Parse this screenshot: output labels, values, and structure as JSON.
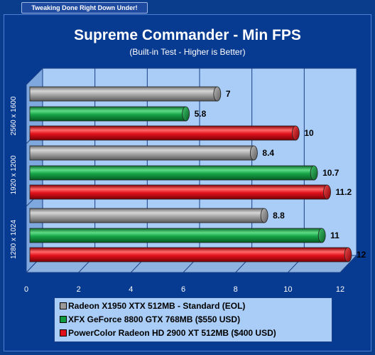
{
  "banner": "Tweaking Done Right Down Under!",
  "chart_data": {
    "type": "bar",
    "orientation": "horizontal",
    "title": "Supreme Commander - Min FPS",
    "subtitle": "(Built-in Test  - Higher is Better)",
    "categories": [
      "2560 x 1600",
      "1920 x 1200",
      "1280 x 1024"
    ],
    "series": [
      {
        "name": "Radeon X1950 XTX 512MB - Standard (EOL)",
        "color": "#9a9a9a",
        "values": [
          7,
          8.4,
          8.8
        ],
        "labels": [
          "7",
          "8.4",
          "8.8"
        ]
      },
      {
        "name": "XFX GeForce 8800 GTX 768MB ($550 USD)",
        "color": "#119a3e",
        "values": [
          5.8,
          10.7,
          11
        ],
        "labels": [
          "5.8",
          "10.7",
          "11"
        ]
      },
      {
        "name": "PowerColor Radeon HD 2900 XT 512MB ($400 USD)",
        "color": "#e0101a",
        "values": [
          10,
          11.2,
          12
        ],
        "labels": [
          "10",
          "11.2",
          "12"
        ]
      }
    ],
    "xlim": [
      0,
      12
    ],
    "xticks": [
      "0",
      "2",
      "4",
      "6",
      "8",
      "10",
      "12"
    ],
    "grid": true,
    "legend_position": "bottom"
  }
}
